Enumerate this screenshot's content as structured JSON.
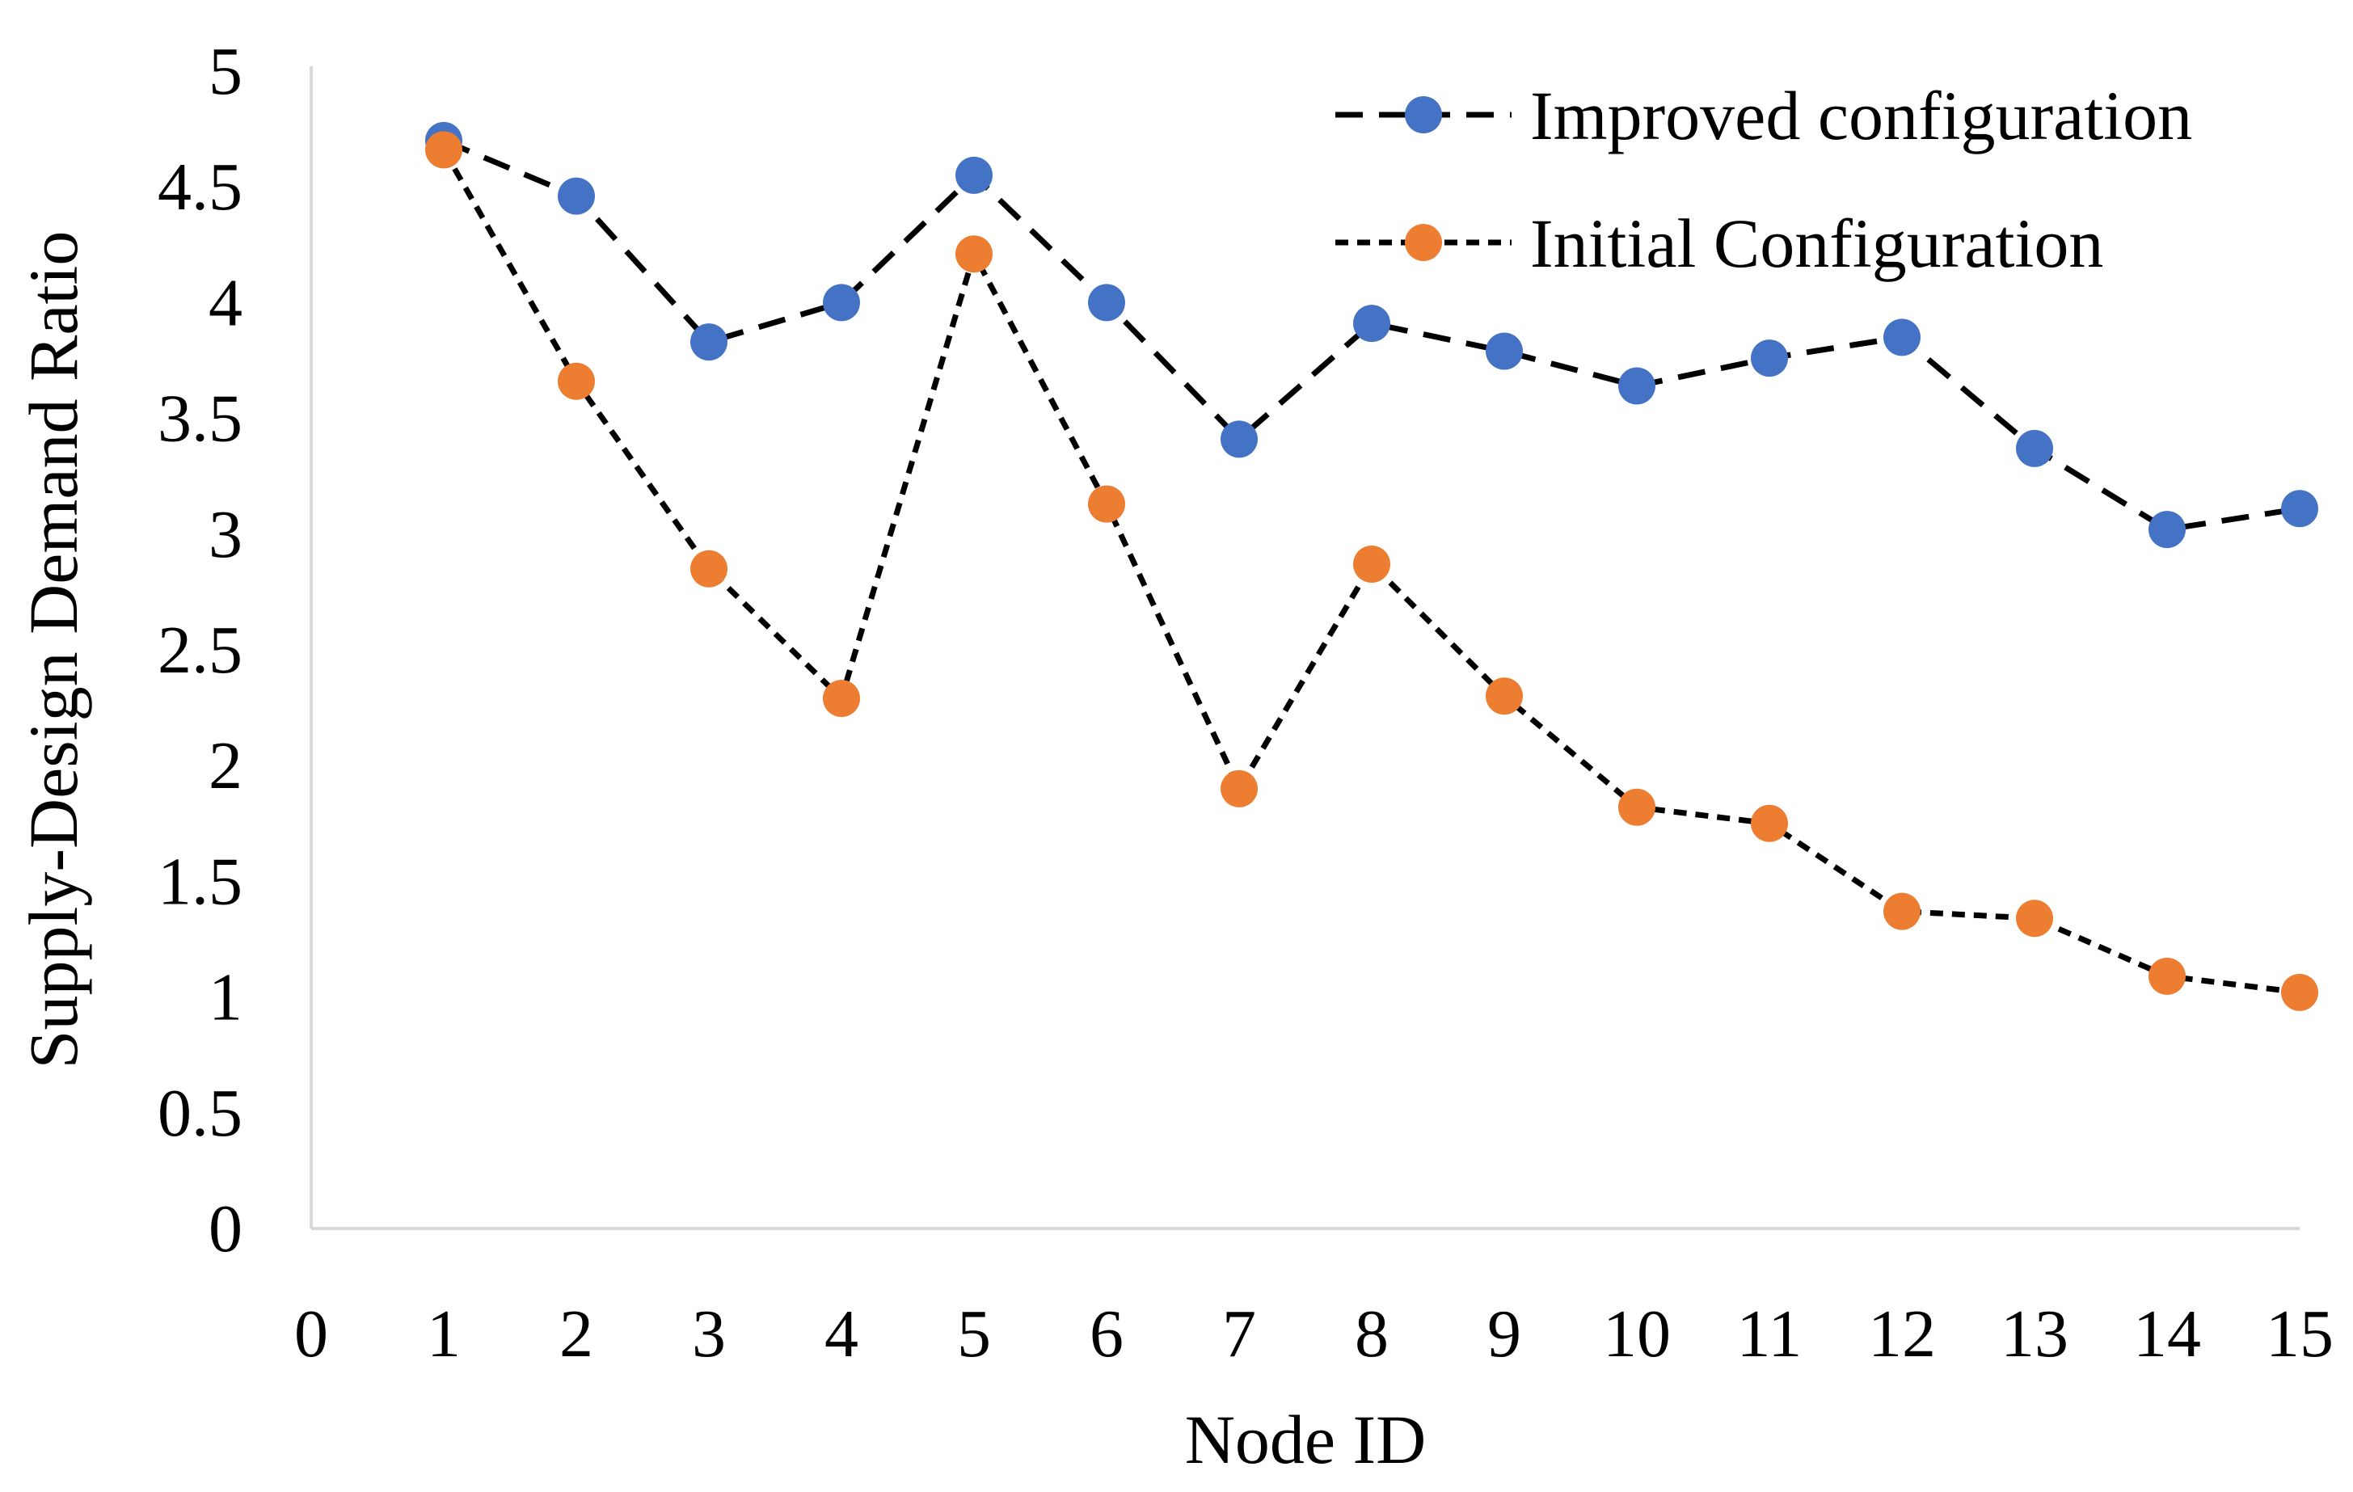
{
  "chart_data": {
    "type": "line",
    "title": "",
    "xlabel": "Node ID",
    "ylabel": "Supply-Design Demand Ratio",
    "xlim": [
      0,
      15
    ],
    "ylim": [
      0,
      5
    ],
    "x_ticks": [
      "0",
      "1",
      "2",
      "3",
      "4",
      "5",
      "6",
      "7",
      "8",
      "9",
      "10",
      "11",
      "12",
      "13",
      "14",
      "15"
    ],
    "y_ticks": [
      "0",
      "0.5",
      "1",
      "1.5",
      "2",
      "2.5",
      "3",
      "3.5",
      "4",
      "4.5",
      "5"
    ],
    "grid": false,
    "legend_position": "top-right",
    "x": [
      1,
      2,
      3,
      4,
      5,
      6,
      7,
      8,
      9,
      10,
      11,
      12,
      13,
      14,
      15
    ],
    "series": [
      {
        "name": "Improved configuration",
        "color": "#4472C4",
        "line_color": "#000000",
        "line_style": "long-dash",
        "values": [
          4.7,
          4.46,
          3.83,
          4.0,
          4.55,
          4.0,
          3.41,
          3.91,
          3.79,
          3.64,
          3.76,
          3.85,
          3.37,
          3.02,
          3.11
        ]
      },
      {
        "name": "Initial Configuration",
        "color": "#ED7D31",
        "line_color": "#000000",
        "line_style": "short-dash",
        "values": [
          4.66,
          3.66,
          2.85,
          2.29,
          4.21,
          3.13,
          1.9,
          2.87,
          2.3,
          1.82,
          1.75,
          1.37,
          1.34,
          1.09,
          1.02
        ]
      }
    ]
  }
}
